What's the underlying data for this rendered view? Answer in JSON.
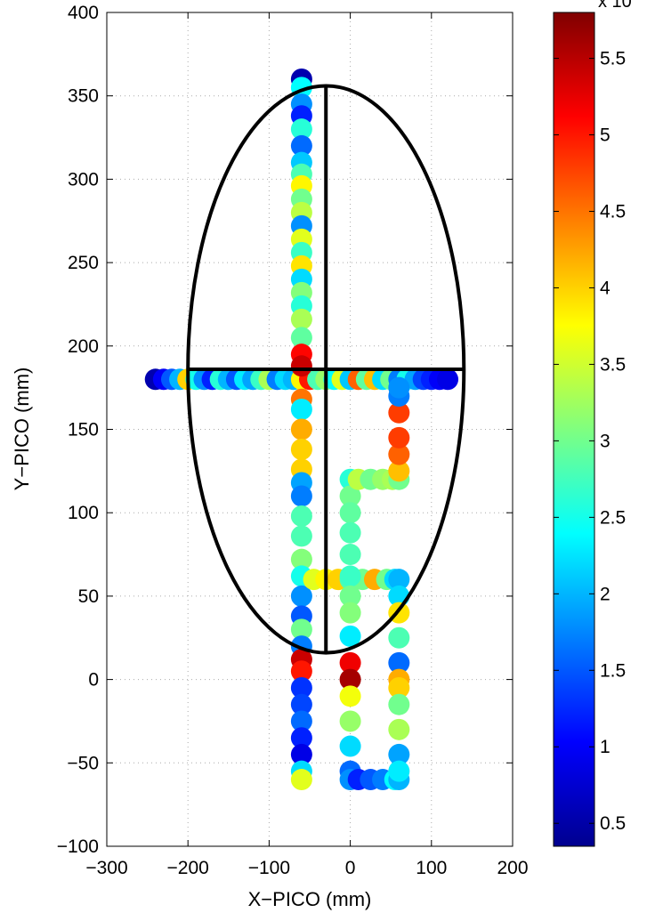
{
  "chart_data": {
    "type": "scatter",
    "title": "",
    "xlabel": "X−PICO (mm)",
    "ylabel": "Y−PICO (mm)",
    "xlim": [
      -300,
      200
    ],
    "ylim": [
      -100,
      400
    ],
    "xticks": [
      -300,
      -200,
      -100,
      0,
      100,
      200
    ],
    "yticks": [
      -100,
      -50,
      0,
      50,
      100,
      150,
      200,
      250,
      300,
      350,
      400
    ],
    "xtick_labels": [
      "−300",
      "−200",
      "−100",
      "0",
      "100",
      "200"
    ],
    "ytick_labels": [
      "−100",
      "−50",
      "0",
      "50",
      "100",
      "150",
      "200",
      "250",
      "300",
      "350",
      "400"
    ],
    "grid": true,
    "colormap": "jet",
    "colorbar": {
      "range": [
        0.35,
        5.8
      ],
      "ticks": [
        0.5,
        1,
        1.5,
        2,
        2.5,
        3,
        3.5,
        4,
        4.5,
        5,
        5.5
      ],
      "tick_labels": [
        "0.5",
        "1",
        "1.5",
        "2",
        "2.5",
        "3",
        "3.5",
        "4",
        "4.5",
        "5",
        "5.5"
      ],
      "exponent_label": "x 10"
    },
    "points": [
      [
        -240,
        180,
        0.6
      ],
      [
        -230,
        180,
        1.0
      ],
      [
        -220,
        180,
        1.5
      ],
      [
        -210,
        180,
        2.0
      ],
      [
        -200,
        180,
        4.0
      ],
      [
        -190,
        180,
        2.5
      ],
      [
        -180,
        180,
        1.8
      ],
      [
        -170,
        180,
        1.2
      ],
      [
        -160,
        180,
        2.6
      ],
      [
        -150,
        180,
        2.0
      ],
      [
        -140,
        180,
        1.5
      ],
      [
        -130,
        180,
        2.3
      ],
      [
        -120,
        180,
        1.9
      ],
      [
        -110,
        180,
        2.7
      ],
      [
        -100,
        180,
        3.3
      ],
      [
        -90,
        180,
        1.7
      ],
      [
        -80,
        180,
        2.2
      ],
      [
        -70,
        180,
        2.0
      ],
      [
        -60,
        180,
        3.8
      ],
      [
        -50,
        180,
        5.0
      ],
      [
        -40,
        180,
        2.8
      ],
      [
        -30,
        180,
        3.2
      ],
      [
        -20,
        180,
        2.4
      ],
      [
        -10,
        180,
        3.6
      ],
      [
        0,
        180,
        2.1
      ],
      [
        10,
        180,
        4.6
      ],
      [
        20,
        180,
        2.9
      ],
      [
        30,
        180,
        4.1
      ],
      [
        40,
        180,
        2.2
      ],
      [
        50,
        180,
        3.0
      ],
      [
        60,
        180,
        1.7
      ],
      [
        70,
        180,
        2.5
      ],
      [
        80,
        180,
        1.9
      ],
      [
        90,
        180,
        1.4
      ],
      [
        100,
        180,
        1.2
      ],
      [
        110,
        180,
        1.0
      ],
      [
        120,
        180,
        0.9
      ],
      [
        -60,
        360,
        0.6
      ],
      [
        -60,
        355,
        2.4
      ],
      [
        -60,
        345,
        1.8
      ],
      [
        -60,
        338,
        1.2
      ],
      [
        -60,
        330,
        2.6
      ],
      [
        -60,
        320,
        1.6
      ],
      [
        -60,
        310,
        2.1
      ],
      [
        -60,
        303,
        2.8
      ],
      [
        -60,
        296,
        3.8
      ],
      [
        -60,
        288,
        3.0
      ],
      [
        -60,
        280,
        3.4
      ],
      [
        -60,
        272,
        1.8
      ],
      [
        -60,
        264,
        3.6
      ],
      [
        -60,
        256,
        2.7
      ],
      [
        -60,
        248,
        3.9
      ],
      [
        -60,
        240,
        2.2
      ],
      [
        -60,
        232,
        3.1
      ],
      [
        -60,
        224,
        2.6
      ],
      [
        -60,
        216,
        3.3
      ],
      [
        -60,
        205,
        2.9
      ],
      [
        -60,
        195,
        5.1
      ],
      [
        -60,
        188,
        5.4
      ],
      [
        -60,
        168,
        4.5
      ],
      [
        -60,
        162,
        2.3
      ],
      [
        -60,
        150,
        4.2
      ],
      [
        -60,
        138,
        4.0
      ],
      [
        -60,
        126,
        4.0
      ],
      [
        -60,
        118,
        1.9
      ],
      [
        -60,
        110,
        1.7
      ],
      [
        -60,
        98,
        2.8
      ],
      [
        -60,
        86,
        2.8
      ],
      [
        -60,
        72,
        3.1
      ],
      [
        -60,
        62,
        2.5
      ],
      [
        -60,
        50,
        1.8
      ],
      [
        -60,
        38,
        1.5
      ],
      [
        -60,
        30,
        3.0
      ],
      [
        -60,
        20,
        1.7
      ],
      [
        -60,
        12,
        5.4
      ],
      [
        -60,
        5,
        5.0
      ],
      [
        -60,
        -5,
        1.3
      ],
      [
        -60,
        -15,
        1.4
      ],
      [
        -60,
        -25,
        1.6
      ],
      [
        -60,
        -35,
        1.2
      ],
      [
        -60,
        -45,
        0.9
      ],
      [
        -60,
        -55,
        2.2
      ],
      [
        -60,
        -60,
        3.6
      ],
      [
        -45,
        60,
        3.6
      ],
      [
        -30,
        60,
        3.8
      ],
      [
        -15,
        60,
        4.0
      ],
      [
        0,
        60,
        2.8
      ],
      [
        15,
        60,
        3.0
      ],
      [
        30,
        60,
        4.2
      ],
      [
        45,
        60,
        3.0
      ],
      [
        55,
        60,
        2.2
      ],
      [
        60,
        60,
        2.0
      ],
      [
        0,
        120,
        2.6
      ],
      [
        0,
        110,
        3.0
      ],
      [
        0,
        100,
        2.9
      ],
      [
        0,
        88,
        2.8
      ],
      [
        0,
        75,
        2.8
      ],
      [
        0,
        62,
        2.7
      ],
      [
        0,
        50,
        3.0
      ],
      [
        0,
        40,
        3.1
      ],
      [
        0,
        26,
        2.3
      ],
      [
        0,
        10,
        5.2
      ],
      [
        0,
        0,
        5.6
      ],
      [
        0,
        -10,
        3.7
      ],
      [
        0,
        -25,
        3.2
      ],
      [
        0,
        -40,
        2.2
      ],
      [
        0,
        -55,
        1.6
      ],
      [
        0,
        -60,
        1.8
      ],
      [
        10,
        120,
        3.4
      ],
      [
        25,
        120,
        3.0
      ],
      [
        40,
        120,
        3.2
      ],
      [
        52,
        120,
        3.3
      ],
      [
        60,
        120,
        3.0
      ],
      [
        10,
        -60,
        1.2
      ],
      [
        25,
        -60,
        1.5
      ],
      [
        40,
        -60,
        1.7
      ],
      [
        55,
        -60,
        2.4
      ],
      [
        60,
        -60,
        2.0
      ],
      [
        60,
        125,
        4.1
      ],
      [
        60,
        135,
        4.6
      ],
      [
        60,
        145,
        4.8
      ],
      [
        60,
        160,
        4.8
      ],
      [
        60,
        170,
        1.7
      ],
      [
        60,
        175,
        1.8
      ],
      [
        60,
        50,
        2.2
      ],
      [
        60,
        40,
        3.9
      ],
      [
        60,
        25,
        2.8
      ],
      [
        60,
        10,
        1.6
      ],
      [
        60,
        0,
        4.2
      ],
      [
        60,
        -5,
        4.0
      ],
      [
        60,
        -15,
        3.0
      ],
      [
        60,
        -30,
        3.3
      ],
      [
        60,
        -45,
        1.9
      ],
      [
        60,
        -55,
        2.3
      ]
    ],
    "ellipse": {
      "cx": -30,
      "cy": 186,
      "rx": 170,
      "ry": 170
    },
    "crosshair": {
      "horizontal": {
        "x1": -200,
        "x2": 140,
        "y": 186
      },
      "vertical": {
        "x": -30,
        "y1": 16,
        "y2": 356
      }
    }
  }
}
